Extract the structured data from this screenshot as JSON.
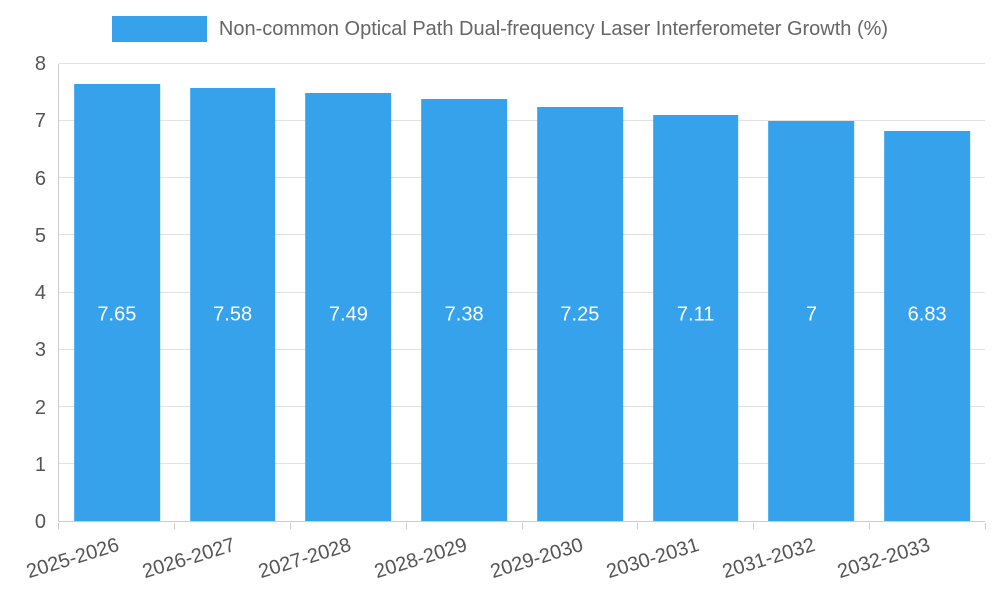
{
  "chart_data": {
    "type": "bar",
    "title": "Non-common Optical Path Dual-frequency Laser Interferometer Growth (%)",
    "categories": [
      "2025-2026",
      "2026-2027",
      "2027-2028",
      "2028-2029",
      "2029-2030",
      "2030-2031",
      "2031-2032",
      "2032-2033"
    ],
    "values": [
      7.65,
      7.58,
      7.49,
      7.38,
      7.25,
      7.11,
      7,
      6.83
    ],
    "xlabel": "",
    "ylabel": "",
    "ylim": [
      0,
      8
    ],
    "ytick_step": 1,
    "grid": true,
    "legend_position": "top",
    "bar_color": "#36a2eb",
    "value_label_color": "#ffffff",
    "axis_text_color": "#555555",
    "grid_color": "#e2e2e2"
  }
}
